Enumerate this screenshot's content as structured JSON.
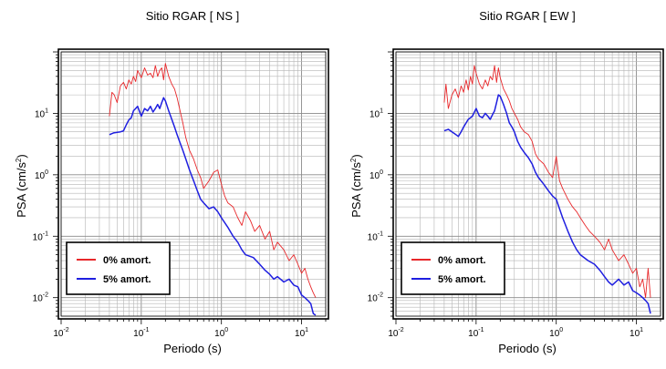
{
  "chart_data": [
    {
      "type": "line",
      "title": "Sitio RGAR [ NS ]",
      "xlabel": "Periodo (s)",
      "ylabel_main": "PSA (cm/s",
      "ylabel_sup": "2",
      "ylabel_close": ")",
      "xscale": "log",
      "yscale": "log",
      "xlim": [
        0.01,
        20
      ],
      "ylim": [
        0.005,
        100
      ],
      "grid": true,
      "legend_position": "bottom-left",
      "x_ticks": [
        {
          "base": "10",
          "exp": "-2"
        },
        {
          "base": "10",
          "exp": "-1"
        },
        {
          "base": "10",
          "exp": "0"
        },
        {
          "base": "10",
          "exp": "1"
        }
      ],
      "y_ticks": [
        {
          "base": "10",
          "exp": "-2"
        },
        {
          "base": "10",
          "exp": "-1"
        },
        {
          "base": "10",
          "exp": "0"
        },
        {
          "base": "10",
          "exp": "1"
        }
      ],
      "series": [
        {
          "name": "0% amort.",
          "color": "#e8272a",
          "x": [
            0.04,
            0.043,
            0.046,
            0.05,
            0.055,
            0.06,
            0.065,
            0.07,
            0.075,
            0.08,
            0.085,
            0.09,
            0.1,
            0.11,
            0.12,
            0.13,
            0.14,
            0.15,
            0.16,
            0.17,
            0.18,
            0.19,
            0.2,
            0.22,
            0.24,
            0.26,
            0.28,
            0.3,
            0.33,
            0.36,
            0.4,
            0.45,
            0.5,
            0.55,
            0.6,
            0.7,
            0.8,
            0.9,
            1.0,
            1.1,
            1.2,
            1.4,
            1.6,
            1.8,
            2.0,
            2.3,
            2.6,
            3.0,
            3.5,
            4.0,
            4.5,
            5.0,
            6.0,
            7.0,
            8.0,
            9.0,
            10.0,
            11.0,
            12.0,
            13.0,
            14.0,
            15.0
          ],
          "y": [
            9,
            22,
            20,
            15,
            28,
            32,
            25,
            35,
            30,
            40,
            33,
            50,
            38,
            55,
            42,
            45,
            38,
            60,
            40,
            50,
            55,
            35,
            65,
            40,
            30,
            25,
            18,
            12,
            7,
            4,
            2.5,
            1.8,
            1.2,
            0.9,
            0.6,
            0.8,
            1.1,
            1.2,
            0.7,
            0.45,
            0.35,
            0.3,
            0.2,
            0.15,
            0.25,
            0.18,
            0.12,
            0.15,
            0.09,
            0.12,
            0.06,
            0.08,
            0.06,
            0.04,
            0.05,
            0.035,
            0.025,
            0.03,
            0.02,
            0.015,
            0.012,
            0.01
          ]
        },
        {
          "name": "5% amort.",
          "color": "#1f1fe0",
          "x": [
            0.04,
            0.045,
            0.05,
            0.055,
            0.06,
            0.065,
            0.07,
            0.075,
            0.08,
            0.085,
            0.09,
            0.1,
            0.11,
            0.12,
            0.13,
            0.14,
            0.15,
            0.16,
            0.17,
            0.18,
            0.19,
            0.2,
            0.22,
            0.24,
            0.26,
            0.28,
            0.3,
            0.33,
            0.36,
            0.4,
            0.45,
            0.5,
            0.55,
            0.6,
            0.7,
            0.8,
            0.9,
            1.0,
            1.2,
            1.4,
            1.6,
            1.8,
            2.0,
            2.5,
            3.0,
            3.5,
            4.0,
            4.5,
            5.0,
            6.0,
            7.0,
            8.0,
            9.0,
            10.0,
            11.0,
            12.0,
            13.0,
            14.0,
            15.0
          ],
          "y": [
            4.5,
            4.8,
            4.9,
            5.0,
            5.2,
            6.5,
            7.8,
            8.5,
            11,
            12,
            13,
            9,
            12,
            11,
            13,
            10.5,
            12,
            14,
            12,
            15,
            18,
            16,
            11,
            8,
            6,
            4.5,
            3.5,
            2.5,
            1.8,
            1.2,
            0.8,
            0.55,
            0.4,
            0.35,
            0.28,
            0.3,
            0.25,
            0.2,
            0.14,
            0.1,
            0.08,
            0.06,
            0.05,
            0.045,
            0.035,
            0.028,
            0.024,
            0.02,
            0.022,
            0.018,
            0.02,
            0.016,
            0.015,
            0.011,
            0.01,
            0.009,
            0.008,
            0.0055,
            0.0052
          ]
        }
      ]
    },
    {
      "type": "line",
      "title": "Sitio RGAR [ EW ]",
      "xlabel": "Periodo (s)",
      "ylabel_main": "PSA (cm/s",
      "ylabel_sup": "2",
      "ylabel_close": ")",
      "xscale": "log",
      "yscale": "log",
      "xlim": [
        0.01,
        20
      ],
      "ylim": [
        0.005,
        100
      ],
      "grid": true,
      "legend_position": "bottom-left",
      "x_ticks": [
        {
          "base": "10",
          "exp": "-2"
        },
        {
          "base": "10",
          "exp": "-1"
        },
        {
          "base": "10",
          "exp": "0"
        },
        {
          "base": "10",
          "exp": "1"
        }
      ],
      "y_ticks": [
        {
          "base": "10",
          "exp": "-2"
        },
        {
          "base": "10",
          "exp": "-1"
        },
        {
          "base": "10",
          "exp": "0"
        },
        {
          "base": "10",
          "exp": "1"
        }
      ],
      "series": [
        {
          "name": "0% amort.",
          "color": "#e8272a",
          "x": [
            0.04,
            0.042,
            0.045,
            0.05,
            0.055,
            0.06,
            0.065,
            0.07,
            0.075,
            0.08,
            0.085,
            0.09,
            0.095,
            0.1,
            0.11,
            0.12,
            0.13,
            0.14,
            0.15,
            0.16,
            0.17,
            0.18,
            0.19,
            0.2,
            0.22,
            0.24,
            0.26,
            0.28,
            0.3,
            0.33,
            0.36,
            0.4,
            0.45,
            0.5,
            0.55,
            0.6,
            0.7,
            0.8,
            0.9,
            1.0,
            1.1,
            1.2,
            1.4,
            1.6,
            1.8,
            2.0,
            2.3,
            2.6,
            3.0,
            3.5,
            4.0,
            4.5,
            5.0,
            6.0,
            7.0,
            8.0,
            9.0,
            10.0,
            11.0,
            12.0,
            13.0,
            14.0,
            15.0
          ],
          "y": [
            15,
            30,
            12,
            20,
            25,
            18,
            28,
            22,
            35,
            24,
            40,
            30,
            60,
            45,
            30,
            25,
            35,
            28,
            40,
            35,
            60,
            32,
            55,
            38,
            25,
            20,
            16,
            12,
            10,
            8,
            6,
            5,
            4.5,
            3.5,
            2.2,
            1.8,
            1.5,
            1.1,
            0.9,
            2.0,
            0.8,
            0.6,
            0.4,
            0.3,
            0.25,
            0.2,
            0.15,
            0.12,
            0.1,
            0.08,
            0.06,
            0.09,
            0.06,
            0.04,
            0.05,
            0.035,
            0.025,
            0.03,
            0.015,
            0.02,
            0.01,
            0.03,
            0.01
          ]
        },
        {
          "name": "5% amort.",
          "color": "#1f1fe0",
          "x": [
            0.04,
            0.045,
            0.05,
            0.055,
            0.06,
            0.065,
            0.07,
            0.075,
            0.08,
            0.085,
            0.09,
            0.1,
            0.11,
            0.12,
            0.13,
            0.14,
            0.15,
            0.16,
            0.17,
            0.18,
            0.19,
            0.2,
            0.22,
            0.24,
            0.26,
            0.28,
            0.3,
            0.33,
            0.36,
            0.4,
            0.45,
            0.5,
            0.55,
            0.6,
            0.7,
            0.8,
            0.9,
            1.0,
            1.2,
            1.4,
            1.6,
            1.8,
            2.0,
            2.5,
            3.0,
            3.5,
            4.0,
            4.5,
            5.0,
            6.0,
            7.0,
            8.0,
            9.0,
            10.0,
            11.0,
            12.0,
            13.0,
            14.0,
            15.0
          ],
          "y": [
            5.2,
            5.5,
            5.0,
            4.6,
            4.2,
            5.0,
            6.0,
            7.0,
            8.0,
            8.5,
            9.0,
            12,
            9,
            8.5,
            10,
            9,
            8,
            9.5,
            11,
            15,
            20,
            19,
            14,
            10,
            7,
            6,
            5,
            3.5,
            2.8,
            2.3,
            1.9,
            1.5,
            1.1,
            0.9,
            0.7,
            0.55,
            0.45,
            0.4,
            0.2,
            0.12,
            0.08,
            0.06,
            0.05,
            0.04,
            0.035,
            0.028,
            0.022,
            0.018,
            0.016,
            0.02,
            0.016,
            0.018,
            0.013,
            0.012,
            0.011,
            0.01,
            0.009,
            0.008,
            0.0055
          ]
        }
      ]
    }
  ]
}
